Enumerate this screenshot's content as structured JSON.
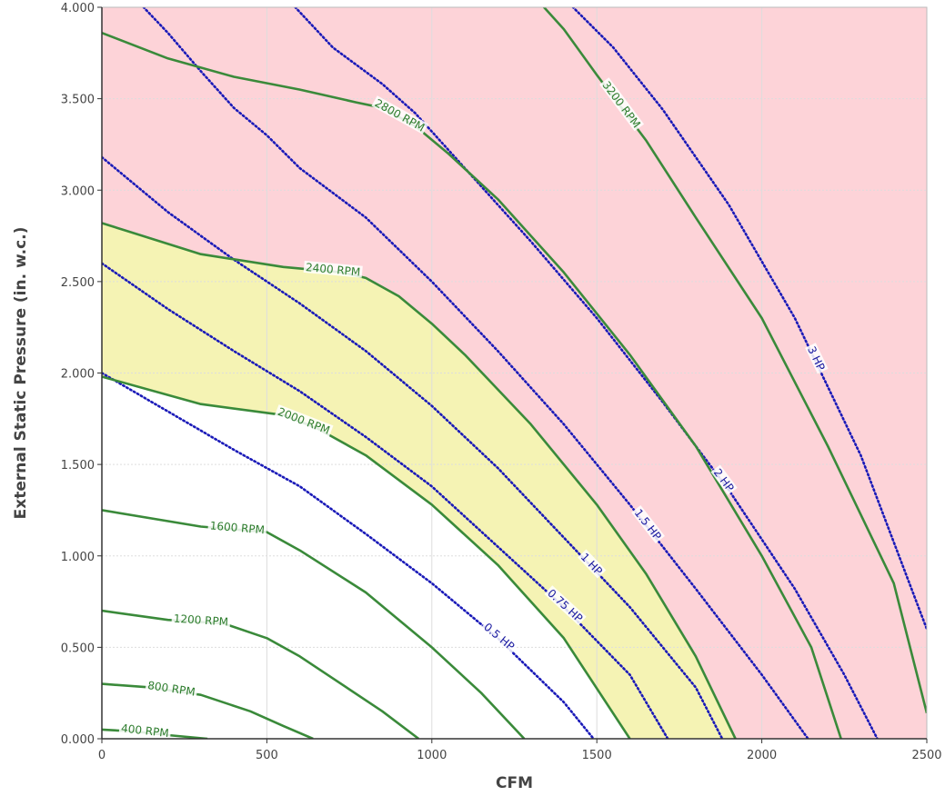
{
  "chart_data": {
    "type": "line",
    "xlabel": "CFM",
    "ylabel": "External Static Pressure (in. w.c.)",
    "xlim": [
      0,
      2500
    ],
    "ylim": [
      0,
      4
    ],
    "x_ticks": [
      "0",
      "500",
      "1000",
      "1500",
      "2000",
      "2500"
    ],
    "y_ticks": [
      "0.000",
      "0.500",
      "1.000",
      "1.500",
      "2.000",
      "2.500",
      "3.000",
      "3.500",
      "4.000"
    ],
    "grid": true,
    "colors": {
      "rpm_curve": "#3a8a3a",
      "rpm_label": "#2e7d2e",
      "hp_curve": "#1a1ab8",
      "hp_label": "#1a1aa0",
      "over_region": "#fdd3d8",
      "operating_region": "#f5f3b4",
      "grid": "#dddddd"
    },
    "rpm_curves": [
      {
        "label": "400 RPM",
        "points": [
          [
            0,
            0.05
          ],
          [
            100,
            0.04
          ],
          [
            200,
            0.02
          ],
          [
            320,
            0.0
          ]
        ]
      },
      {
        "label": "800 RPM",
        "points": [
          [
            0,
            0.3
          ],
          [
            150,
            0.28
          ],
          [
            300,
            0.24
          ],
          [
            450,
            0.15
          ],
          [
            550,
            0.07
          ],
          [
            640,
            0.0
          ]
        ]
      },
      {
        "label": "1200 RPM",
        "points": [
          [
            0,
            0.7
          ],
          [
            200,
            0.65
          ],
          [
            370,
            0.63
          ],
          [
            500,
            0.55
          ],
          [
            600,
            0.45
          ],
          [
            700,
            0.33
          ],
          [
            850,
            0.15
          ],
          [
            960,
            0.0
          ]
        ]
      },
      {
        "label": "1600 RPM",
        "points": [
          [
            0,
            1.25
          ],
          [
            300,
            1.16
          ],
          [
            500,
            1.13
          ],
          [
            600,
            1.03
          ],
          [
            800,
            0.8
          ],
          [
            1000,
            0.5
          ],
          [
            1150,
            0.25
          ],
          [
            1280,
            0.0
          ]
        ]
      },
      {
        "label": "2000 RPM",
        "points": [
          [
            0,
            1.98
          ],
          [
            300,
            1.83
          ],
          [
            550,
            1.77
          ],
          [
            650,
            1.7
          ],
          [
            800,
            1.55
          ],
          [
            1000,
            1.28
          ],
          [
            1200,
            0.95
          ],
          [
            1400,
            0.55
          ],
          [
            1600,
            0.0
          ]
        ]
      },
      {
        "label": "2400 RPM",
        "points": [
          [
            0,
            2.82
          ],
          [
            300,
            2.65
          ],
          [
            550,
            2.58
          ],
          [
            730,
            2.55
          ],
          [
            800,
            2.52
          ],
          [
            900,
            2.42
          ],
          [
            1000,
            2.27
          ],
          [
            1100,
            2.1
          ],
          [
            1300,
            1.72
          ],
          [
            1500,
            1.28
          ],
          [
            1650,
            0.9
          ],
          [
            1800,
            0.45
          ],
          [
            1920,
            0.0
          ]
        ]
      },
      {
        "label": "2800 RPM",
        "points": [
          [
            0,
            3.86
          ],
          [
            200,
            3.72
          ],
          [
            400,
            3.62
          ],
          [
            600,
            3.55
          ],
          [
            770,
            3.48
          ],
          [
            850,
            3.45
          ],
          [
            950,
            3.35
          ],
          [
            1050,
            3.2
          ],
          [
            1200,
            2.95
          ],
          [
            1400,
            2.55
          ],
          [
            1600,
            2.1
          ],
          [
            1800,
            1.6
          ],
          [
            2000,
            1.0
          ],
          [
            2150,
            0.5
          ],
          [
            2240,
            0.0
          ]
        ]
      },
      {
        "label": "3200 RPM",
        "points": [
          [
            1325,
            4.03
          ],
          [
            1400,
            3.88
          ],
          [
            1500,
            3.63
          ],
          [
            1650,
            3.27
          ],
          [
            1800,
            2.85
          ],
          [
            2000,
            2.3
          ],
          [
            2200,
            1.6
          ],
          [
            2400,
            0.85
          ],
          [
            2500,
            0.14
          ]
        ]
      }
    ],
    "hp_curves": [
      {
        "label": "0.5 HP",
        "points": [
          [
            0,
            2.0
          ],
          [
            200,
            1.79
          ],
          [
            400,
            1.58
          ],
          [
            600,
            1.38
          ],
          [
            800,
            1.12
          ],
          [
            1000,
            0.85
          ],
          [
            1200,
            0.55
          ],
          [
            1400,
            0.2
          ],
          [
            1490,
            0.0
          ]
        ]
      },
      {
        "label": "0.75 HP",
        "points": [
          [
            0,
            2.6
          ],
          [
            200,
            2.35
          ],
          [
            400,
            2.12
          ],
          [
            600,
            1.9
          ],
          [
            800,
            1.65
          ],
          [
            1000,
            1.38
          ],
          [
            1200,
            1.05
          ],
          [
            1400,
            0.72
          ],
          [
            1600,
            0.35
          ],
          [
            1715,
            0.0
          ]
        ]
      },
      {
        "label": "1 HP",
        "points": [
          [
            0,
            3.18
          ],
          [
            200,
            2.88
          ],
          [
            400,
            2.62
          ],
          [
            600,
            2.38
          ],
          [
            800,
            2.12
          ],
          [
            1000,
            1.82
          ],
          [
            1200,
            1.48
          ],
          [
            1400,
            1.1
          ],
          [
            1600,
            0.72
          ],
          [
            1800,
            0.28
          ],
          [
            1880,
            0.0
          ]
        ]
      },
      {
        "label": "1.5 HP",
        "points": [
          [
            100,
            4.05
          ],
          [
            200,
            3.86
          ],
          [
            300,
            3.65
          ],
          [
            400,
            3.45
          ],
          [
            500,
            3.3
          ],
          [
            600,
            3.12
          ],
          [
            800,
            2.85
          ],
          [
            1000,
            2.5
          ],
          [
            1200,
            2.12
          ],
          [
            1400,
            1.72
          ],
          [
            1600,
            1.28
          ],
          [
            1800,
            0.82
          ],
          [
            2000,
            0.35
          ],
          [
            2140,
            0.0
          ]
        ]
      },
      {
        "label": "2 HP",
        "points": [
          [
            560,
            4.05
          ],
          [
            700,
            3.78
          ],
          [
            850,
            3.58
          ],
          [
            950,
            3.42
          ],
          [
            1100,
            3.12
          ],
          [
            1300,
            2.72
          ],
          [
            1500,
            2.3
          ],
          [
            1700,
            1.84
          ],
          [
            1900,
            1.36
          ],
          [
            2100,
            0.82
          ],
          [
            2250,
            0.35
          ],
          [
            2350,
            0.0
          ]
        ]
      },
      {
        "label": "3 HP",
        "points": [
          [
            1400,
            4.05
          ],
          [
            1550,
            3.78
          ],
          [
            1700,
            3.44
          ],
          [
            1900,
            2.92
          ],
          [
            2100,
            2.3
          ],
          [
            2300,
            1.55
          ],
          [
            2500,
            0.6
          ]
        ]
      }
    ]
  }
}
